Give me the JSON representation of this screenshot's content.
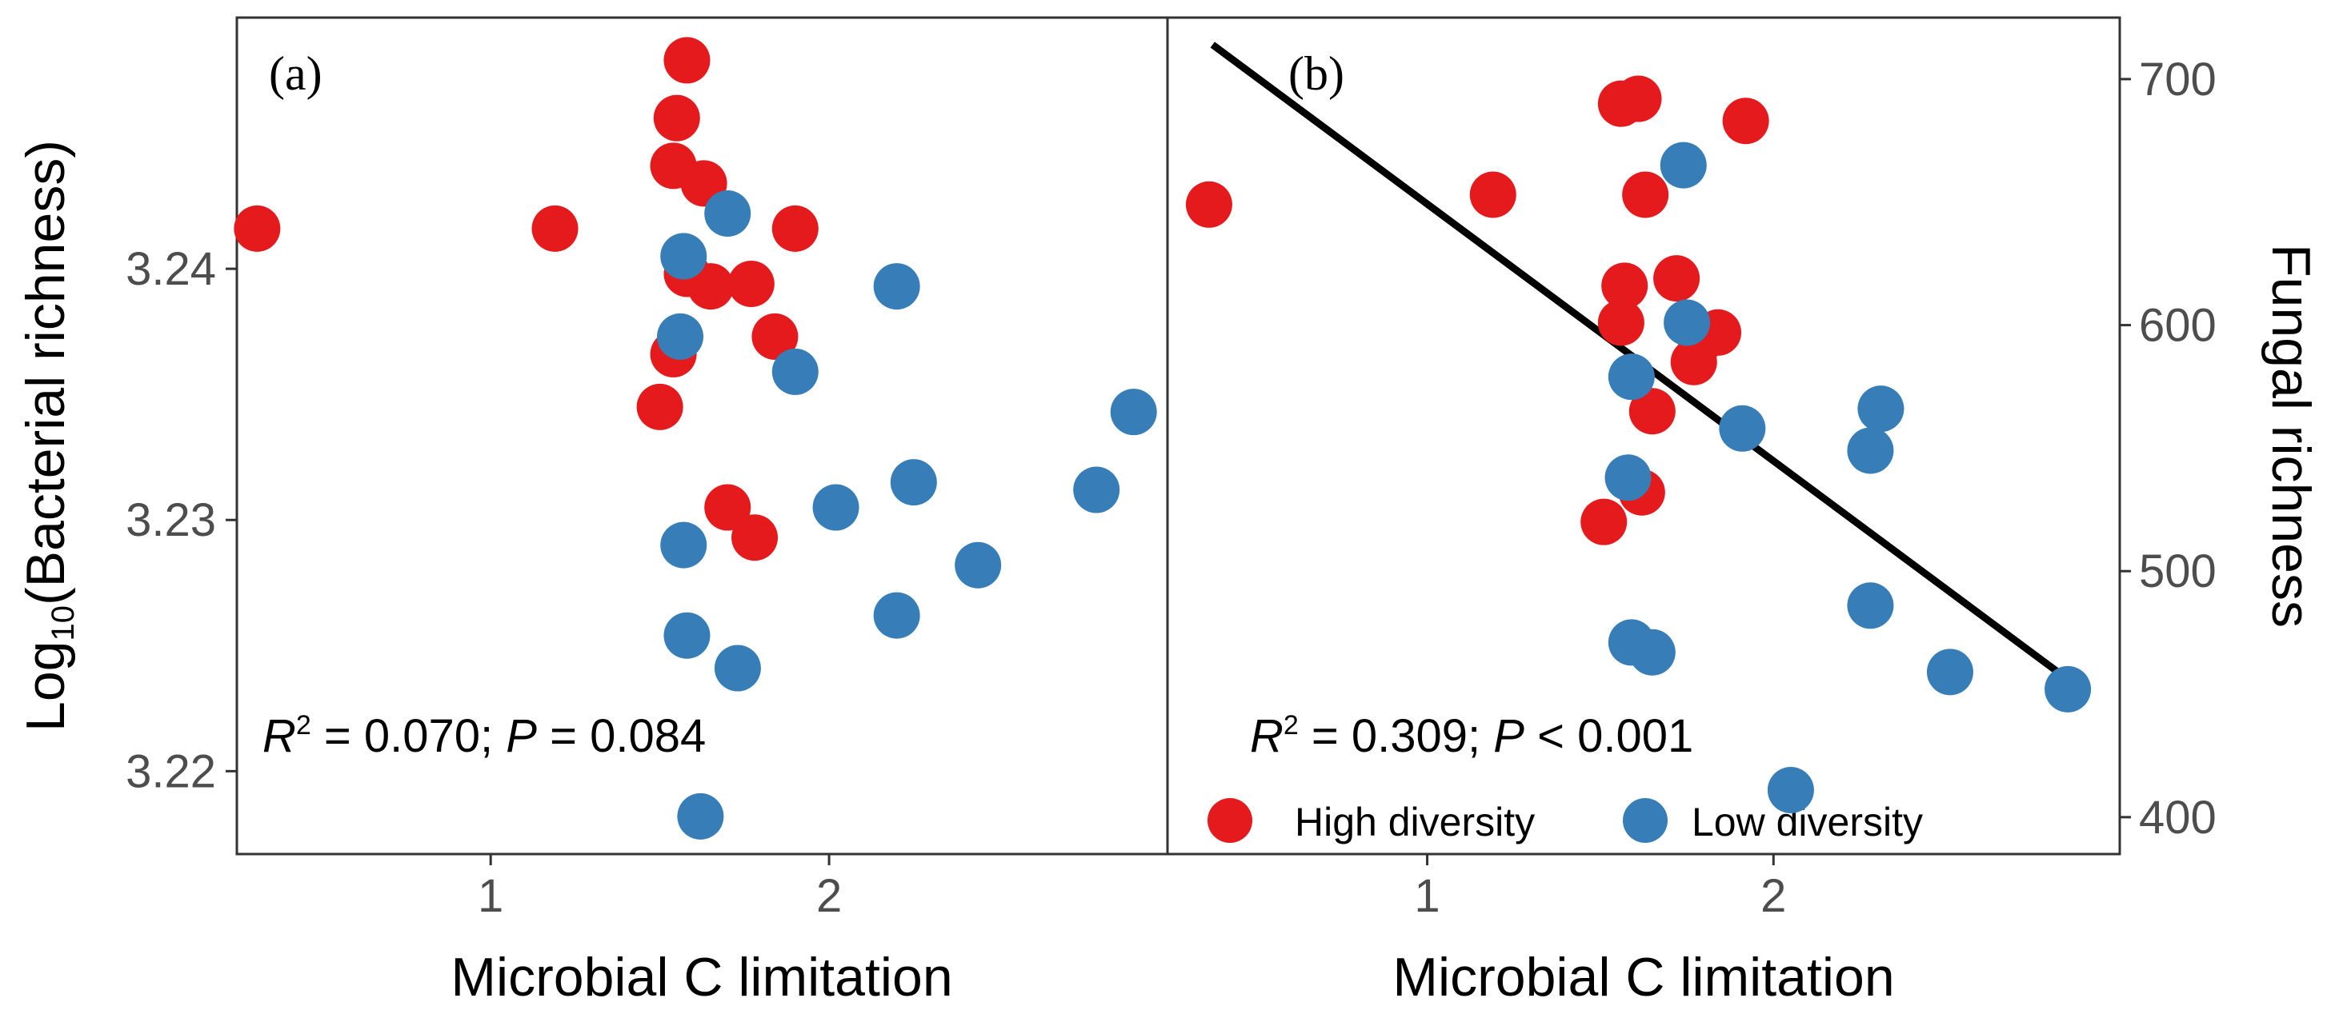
{
  "chart_data": [
    {
      "type": "scatter",
      "panel_label": "(a)",
      "xlabel": "Microbial C limitation",
      "ylabel_main": "Log",
      "ylabel_sub": "10",
      "ylabel_rest": "(Bacterial richness)",
      "xlim": [
        0.25,
        3.0
      ],
      "ylim": [
        3.2167,
        3.25
      ],
      "xticks": [
        1,
        2
      ],
      "xtick_labels": [
        "1",
        "2"
      ],
      "yticks": [
        3.22,
        3.23,
        3.24
      ],
      "ytick_labels": [
        "3.22",
        "3.23",
        "3.24"
      ],
      "stats": {
        "r2_label": "R",
        "r2_sup": "2",
        "r2_value": " = 0.070; ",
        "p_label": "P",
        "p_value": " = 0.084"
      },
      "series": [
        {
          "name": "High diversity",
          "color": "#e41a1c",
          "x": [
            0.31,
            1.19,
            1.58,
            1.55,
            1.54,
            1.63,
            1.58,
            1.65,
            1.77,
            1.9,
            1.84,
            1.54,
            1.5,
            1.7,
            1.78
          ],
          "y": [
            3.2416,
            3.2416,
            3.2483,
            3.246,
            3.2441,
            3.2434,
            3.2398,
            3.2393,
            3.2394,
            3.2416,
            3.2373,
            3.2366,
            3.2345,
            3.2305,
            3.2293
          ]
        },
        {
          "name": "Low diversity",
          "color": "#377eb8",
          "x": [
            1.7,
            1.57,
            2.2,
            1.56,
            1.9,
            2.9,
            2.02,
            2.25,
            2.79,
            1.57,
            2.44,
            1.58,
            2.2,
            1.73,
            1.62
          ],
          "y": [
            3.2422,
            3.2405,
            3.2393,
            3.2373,
            3.2359,
            3.2343,
            3.2305,
            3.2315,
            3.2312,
            3.229,
            3.2282,
            3.2254,
            3.2262,
            3.2241,
            3.2182
          ]
        }
      ]
    },
    {
      "type": "scatter",
      "panel_label": "(b)",
      "xlabel": "Microbial C limitation",
      "ylabel": "Fungal richness",
      "xlim": [
        0.25,
        3.0
      ],
      "ylim": [
        385,
        725
      ],
      "xticks": [
        1,
        2
      ],
      "xtick_labels": [
        "1",
        "2"
      ],
      "yticks": [
        400,
        500,
        600,
        700
      ],
      "ytick_labels": [
        "400",
        "500",
        "600",
        "700"
      ],
      "stats": {
        "r2_label": "R",
        "r2_sup": "2",
        "r2_value": " = 0.309; ",
        "p_label": "P",
        "p_value": " < 0.001"
      },
      "fit_line": {
        "x": [
          0.38,
          2.85
        ],
        "y": [
          714,
          456
        ]
      },
      "series": [
        {
          "name": "High diversity",
          "color": "#e41a1c",
          "x": [
            0.37,
            1.19,
            1.56,
            1.61,
            1.92,
            1.63,
            1.57,
            1.72,
            1.56,
            1.84,
            1.79,
            1.77,
            1.65,
            1.62,
            1.51
          ],
          "y": [
            649,
            653,
            690,
            692,
            683,
            653,
            616,
            619,
            601,
            597,
            594,
            585,
            565,
            532,
            520
          ]
        },
        {
          "name": "Low diversity",
          "color": "#377eb8",
          "x": [
            1.74,
            1.75,
            1.59,
            1.91,
            2.31,
            2.28,
            1.58,
            2.28,
            1.59,
            1.65,
            2.51,
            2.85,
            2.05
          ],
          "y": [
            665,
            601,
            579,
            558,
            566,
            549,
            538,
            486,
            471,
            467,
            459,
            452,
            411
          ]
        }
      ]
    }
  ],
  "legend": {
    "items": [
      {
        "label": "High diversity",
        "color": "#e41a1c"
      },
      {
        "label": "Low diversity",
        "color": "#377eb8"
      }
    ]
  }
}
